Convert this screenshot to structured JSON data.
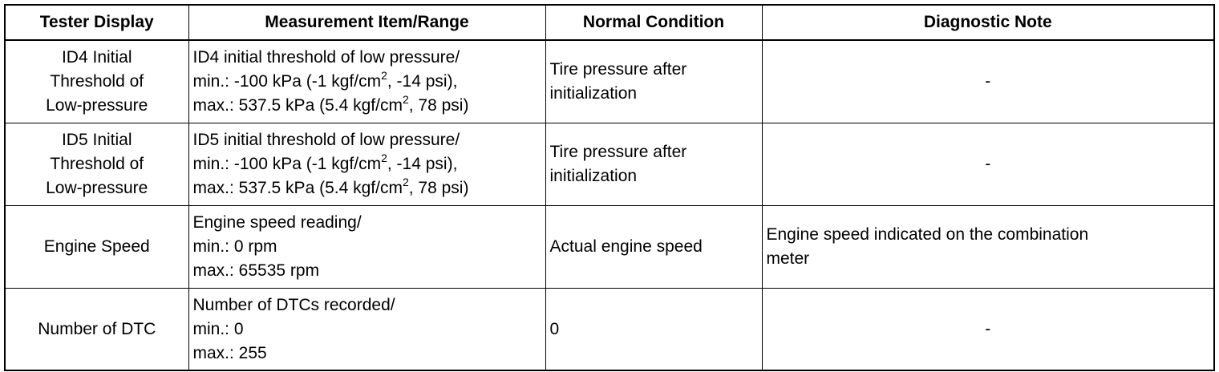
{
  "table": {
    "headers": [
      "Tester Display",
      "Measurement Item/Range",
      "Normal Condition",
      "Diagnostic Note"
    ],
    "rows": [
      {
        "tester": [
          "ID4 Initial",
          "Threshold of",
          "Low-pressure"
        ],
        "measurement": {
          "line1": "ID4 initial threshold of low pressure/",
          "line2_pre": "min.: -100 kPa (-1 kgf/cm",
          "line2_sup": "2",
          "line2_post": ", -14 psi),",
          "line3_pre": "max.: 537.5 kPa (5.4 kgf/cm",
          "line3_sup": "2",
          "line3_post": ", 78 psi)"
        },
        "normal": [
          "Tire pressure after",
          "initialization"
        ],
        "note": "-"
      },
      {
        "tester": [
          "ID5 Initial",
          "Threshold of",
          "Low-pressure"
        ],
        "measurement": {
          "line1": "ID5 initial threshold of low pressure/",
          "line2_pre": "min.: -100 kPa (-1 kgf/cm",
          "line2_sup": "2",
          "line2_post": ", -14 psi),",
          "line3_pre": "max.: 537.5 kPa (5.4 kgf/cm",
          "line3_sup": "2",
          "line3_post": ", 78 psi)"
        },
        "normal": [
          "Tire pressure after",
          "initialization"
        ],
        "note": "-"
      },
      {
        "tester": [
          "Engine Speed"
        ],
        "measurement": {
          "line1": "Engine speed reading/",
          "line2": "min.: 0 rpm",
          "line3": "max.: 65535 rpm"
        },
        "normal": [
          "Actual engine speed"
        ],
        "note": [
          "Engine speed indicated on the combination",
          "meter"
        ]
      },
      {
        "tester": [
          "Number of DTC"
        ],
        "measurement": {
          "line1": "Number of DTCs recorded/",
          "line2": "min.: 0",
          "line3": "max.: 255"
        },
        "normal": [
          "0"
        ],
        "note": "-"
      }
    ]
  }
}
